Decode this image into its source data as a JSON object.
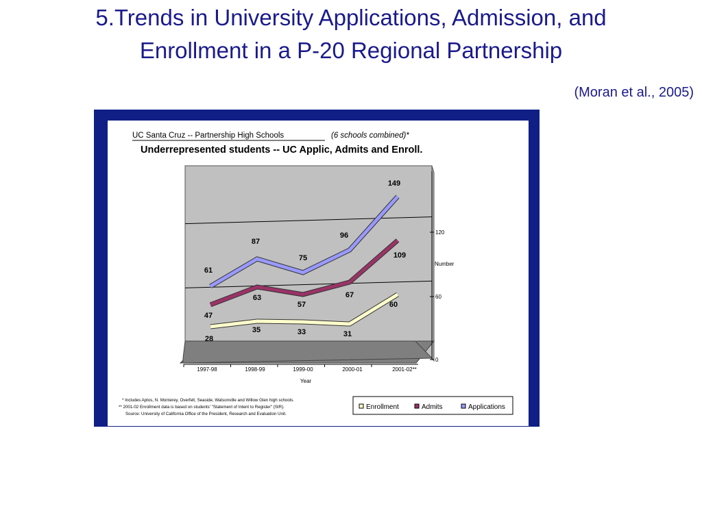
{
  "slide": {
    "title_line1": "5.Trends in University Applications, Admission, and",
    "title_line2": "Enrollment in a P-20 Regional Partnership",
    "citation": "(Moran et al., 2005)"
  },
  "chart_data": {
    "type": "line",
    "title": "Underrepresented students -- UC Applic, Admits and Enroll.",
    "subtitle": "UC Santa Cruz -- Partnership High Schools",
    "subtitle_note": "(6 schools combined)*",
    "xlabel": "Year",
    "ylabel": "Number",
    "categories": [
      "1997-98",
      "1998-99",
      "1999-00",
      "2000-01",
      "2001-02**"
    ],
    "yticks": [
      0,
      60,
      120
    ],
    "ylim": [
      0,
      180
    ],
    "grid": true,
    "legend_position": "bottom-right",
    "series": [
      {
        "name": "Enrollment",
        "values": [
          28,
          35,
          33,
          31,
          60
        ],
        "color": "#ffffcc"
      },
      {
        "name": "Admits",
        "values": [
          47,
          63,
          57,
          67,
          109
        ],
        "color": "#993366"
      },
      {
        "name": "Applications",
        "values": [
          61,
          87,
          75,
          96,
          149
        ],
        "color": "#9999ff"
      }
    ],
    "footnotes": [
      "* Includes Aptos, N. Monterey, Overfelt, Seaside, Watsonville and Willow Glen high schools.",
      "** 2001-02 Enrollment data is based on students' \"Statement of Intent to Register\" (SIR).",
      "Source: University of California Office of the President, Research and Evaluation Unit."
    ]
  }
}
